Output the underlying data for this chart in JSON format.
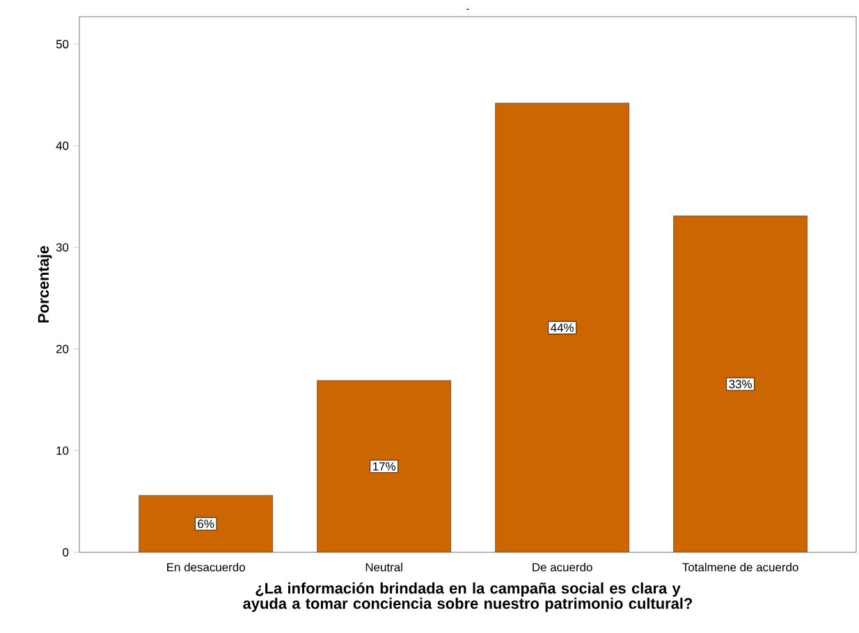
{
  "chart_data": {
    "type": "bar",
    "title": "-",
    "xlabel": "¿La información brindada en la campaña social es clara y ayuda a tomar conciencia sobre nuestro patrimonio cultural?",
    "ylabel": "Porcentaje",
    "categories": [
      "En desacuerdo",
      "Neutral",
      "De acuerdo",
      "Totalmene de acuerdo"
    ],
    "values": [
      5.6,
      16.9,
      44.2,
      33.1
    ],
    "value_labels": [
      "6%",
      "17%",
      "44%",
      "33%"
    ],
    "color": "#cc6600",
    "ylim": [
      0,
      52.7
    ],
    "yticks": [
      0,
      10,
      20,
      30,
      40,
      50
    ],
    "grid": false
  }
}
